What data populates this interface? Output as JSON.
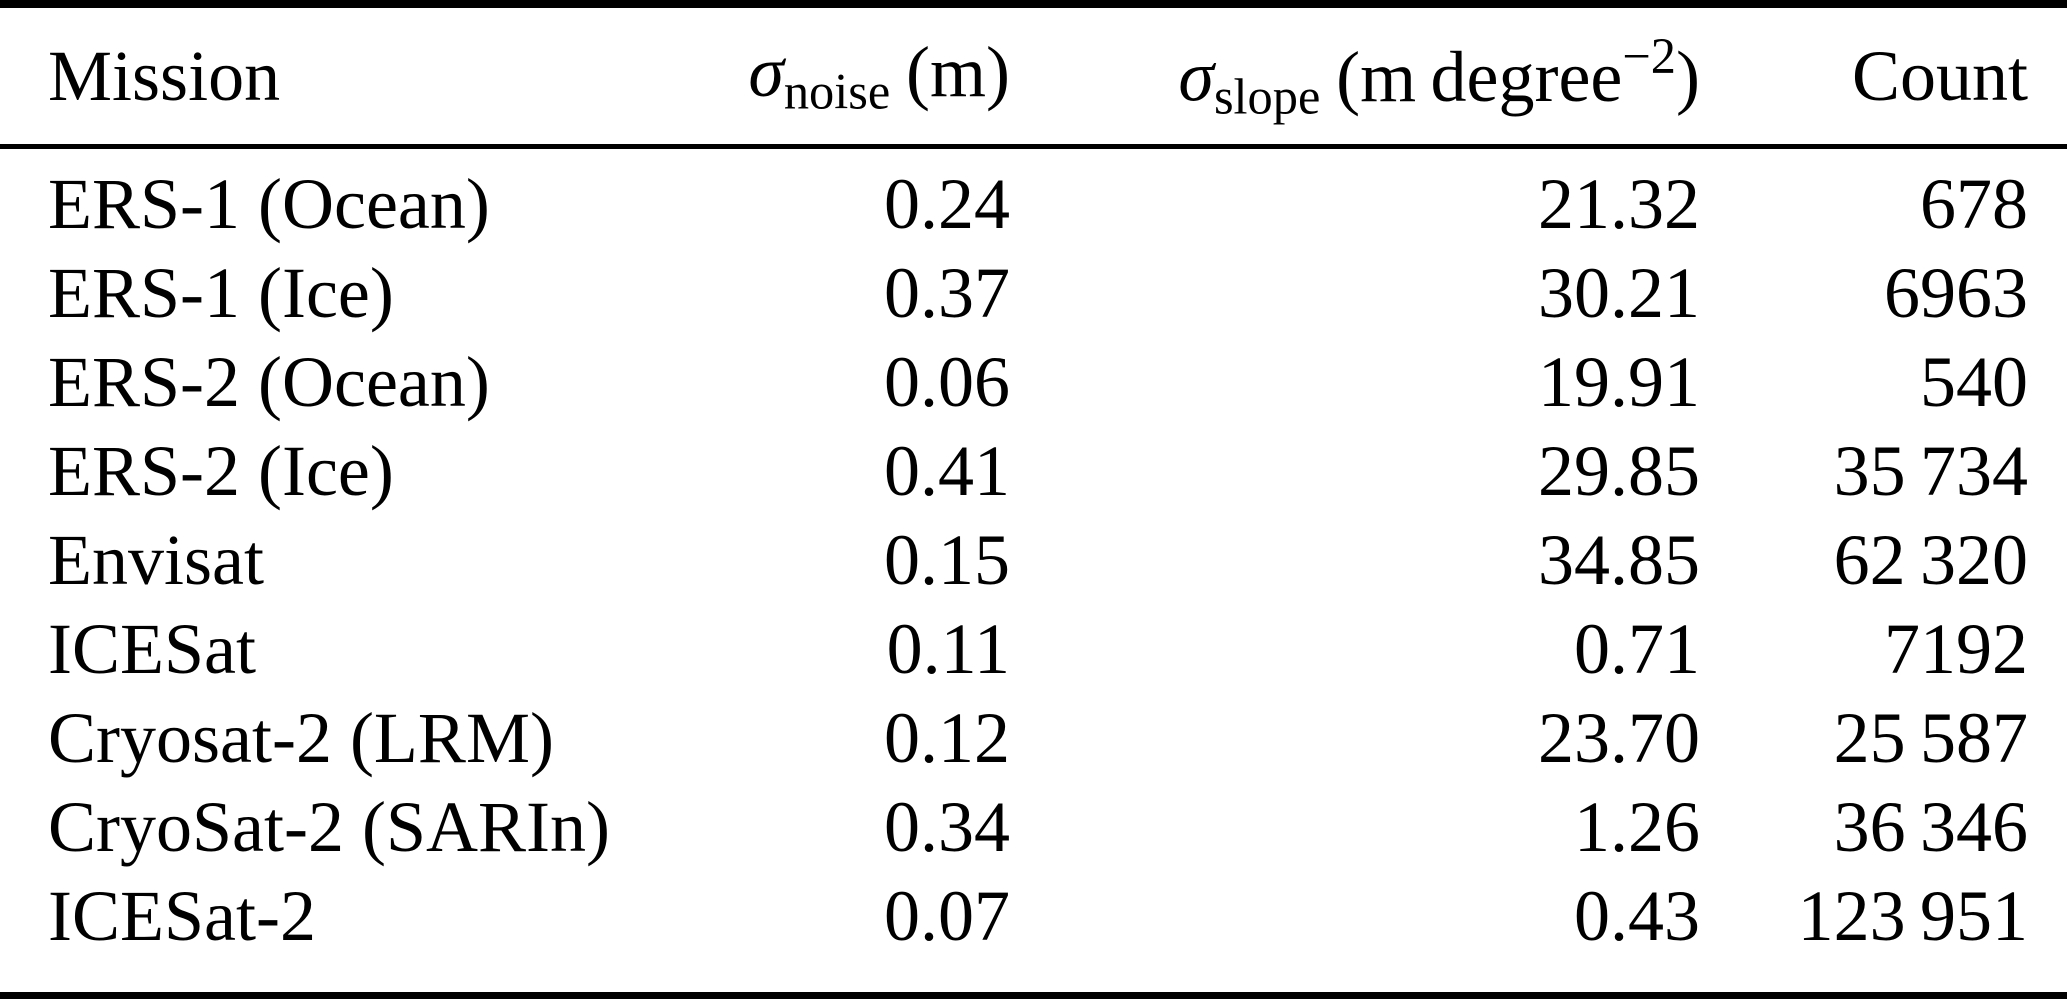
{
  "colors": {
    "text": "#000000",
    "background": "#ffffff",
    "rule": "#000000"
  },
  "table": {
    "header": {
      "mission": "Mission",
      "noise": {
        "sigma": "σ",
        "sub": "noise",
        "unit": "(m)"
      },
      "slope": {
        "sigma": "σ",
        "sub": "slope",
        "unit_pre": "(m degree",
        "sup": "−2",
        "unit_post": ")"
      },
      "count": "Count"
    },
    "rows": [
      {
        "mission": "ERS-1 (Ocean)",
        "noise": "0.24",
        "slope": "21.32",
        "count": "678"
      },
      {
        "mission": "ERS-1 (Ice)",
        "noise": "0.37",
        "slope": "30.21",
        "count": "6963"
      },
      {
        "mission": "ERS-2 (Ocean)",
        "noise": "0.06",
        "slope": "19.91",
        "count": "540"
      },
      {
        "mission": "ERS-2 (Ice)",
        "noise": "0.41",
        "slope": "29.85",
        "count": "35 734"
      },
      {
        "mission": "Envisat",
        "noise": "0.15",
        "slope": "34.85",
        "count": "62 320"
      },
      {
        "mission": "ICESat",
        "noise": "0.11",
        "slope": "0.71",
        "count": "7192"
      },
      {
        "mission": "Cryosat-2 (LRM)",
        "noise": "0.12",
        "slope": "23.70",
        "count": "25 587"
      },
      {
        "mission": "CryoSat-2 (SARIn)",
        "noise": "0.34",
        "slope": "1.26",
        "count": "36 346"
      },
      {
        "mission": "ICESat-2",
        "noise": "0.07",
        "slope": "0.43",
        "count": "123 951"
      }
    ]
  }
}
